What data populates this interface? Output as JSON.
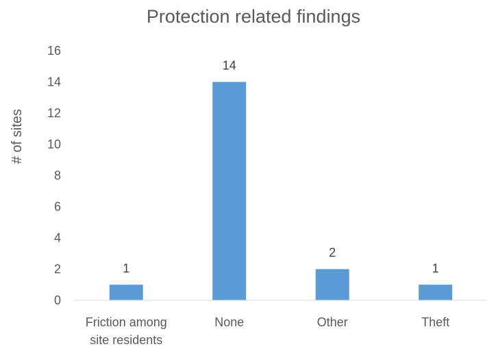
{
  "chart_data": {
    "type": "bar",
    "title": "Protection related findings",
    "xlabel": "",
    "ylabel": "# of sites",
    "categories": [
      "Friction among site residents",
      "None",
      "Other",
      "Theft"
    ],
    "category_lines": [
      [
        "Friction among",
        "site residents"
      ],
      [
        "None"
      ],
      [
        "Other"
      ],
      [
        "Theft"
      ]
    ],
    "values": [
      1,
      14,
      2,
      1
    ],
    "data_labels": [
      "1",
      "14",
      "2",
      "1"
    ],
    "ylim": [
      0,
      16
    ],
    "yticks": [
      "0",
      "2",
      "4",
      "6",
      "8",
      "10",
      "12",
      "14",
      "16"
    ],
    "grid": false,
    "legend": "none",
    "bar_color": "#5b9bd5"
  }
}
